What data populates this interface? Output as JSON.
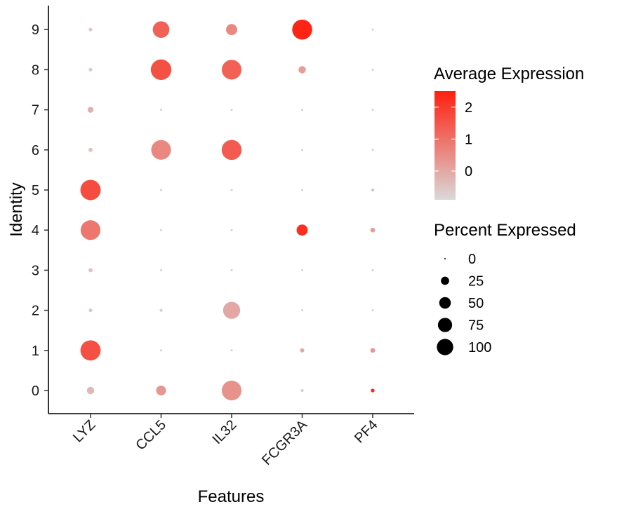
{
  "chart_data": {
    "type": "dotplot",
    "xlabel": "Features",
    "ylabel": "Identity",
    "features": [
      "LYZ",
      "CCL5",
      "IL32",
      "FCGR3A",
      "PF4"
    ],
    "identities": [
      "0",
      "1",
      "2",
      "3",
      "4",
      "5",
      "6",
      "7",
      "8",
      "9"
    ],
    "points": [
      {
        "identity": "0",
        "feature": "LYZ",
        "pct": 12,
        "avg": -0.3
      },
      {
        "identity": "0",
        "feature": "CCL5",
        "pct": 22,
        "avg": 0.3
      },
      {
        "identity": "0",
        "feature": "IL32",
        "pct": 88,
        "avg": 0.4
      },
      {
        "identity": "0",
        "feature": "FCGR3A",
        "pct": 2,
        "avg": -0.7
      },
      {
        "identity": "0",
        "feature": "PF4",
        "pct": 3,
        "avg": 2.4
      },
      {
        "identity": "1",
        "feature": "LYZ",
        "pct": 92,
        "avg": 1.6
      },
      {
        "identity": "1",
        "feature": "CCL5",
        "pct": 1,
        "avg": -0.7
      },
      {
        "identity": "1",
        "feature": "IL32",
        "pct": 1,
        "avg": -0.7
      },
      {
        "identity": "1",
        "feature": "FCGR3A",
        "pct": 4,
        "avg": 0.0
      },
      {
        "identity": "1",
        "feature": "PF4",
        "pct": 5,
        "avg": 0.3
      },
      {
        "identity": "2",
        "feature": "LYZ",
        "pct": 3,
        "avg": -0.6
      },
      {
        "identity": "2",
        "feature": "CCL5",
        "pct": 2,
        "avg": -0.7
      },
      {
        "identity": "2",
        "feature": "IL32",
        "pct": 66,
        "avg": 0.0
      },
      {
        "identity": "2",
        "feature": "FCGR3A",
        "pct": 1,
        "avg": -0.7
      },
      {
        "identity": "2",
        "feature": "PF4",
        "pct": 1,
        "avg": -0.7
      },
      {
        "identity": "3",
        "feature": "LYZ",
        "pct": 4,
        "avg": -0.5
      },
      {
        "identity": "3",
        "feature": "CCL5",
        "pct": 1,
        "avg": -0.7
      },
      {
        "identity": "3",
        "feature": "IL32",
        "pct": 1,
        "avg": -0.7
      },
      {
        "identity": "3",
        "feature": "FCGR3A",
        "pct": 1,
        "avg": -0.7
      },
      {
        "identity": "3",
        "feature": "PF4",
        "pct": 1,
        "avg": -0.7
      },
      {
        "identity": "4",
        "feature": "LYZ",
        "pct": 88,
        "avg": 0.9
      },
      {
        "identity": "4",
        "feature": "CCL5",
        "pct": 1,
        "avg": -0.7
      },
      {
        "identity": "4",
        "feature": "IL32",
        "pct": 1,
        "avg": -0.7
      },
      {
        "identity": "4",
        "feature": "FCGR3A",
        "pct": 28,
        "avg": 2.2
      },
      {
        "identity": "4",
        "feature": "PF4",
        "pct": 5,
        "avg": 0.2
      },
      {
        "identity": "5",
        "feature": "LYZ",
        "pct": 93,
        "avg": 1.7
      },
      {
        "identity": "5",
        "feature": "CCL5",
        "pct": 1,
        "avg": -0.7
      },
      {
        "identity": "5",
        "feature": "IL32",
        "pct": 1,
        "avg": -0.7
      },
      {
        "identity": "5",
        "feature": "FCGR3A",
        "pct": 1,
        "avg": -0.7
      },
      {
        "identity": "5",
        "feature": "PF4",
        "pct": 2,
        "avg": -0.4
      },
      {
        "identity": "6",
        "feature": "LYZ",
        "pct": 4,
        "avg": -0.5
      },
      {
        "identity": "6",
        "feature": "CCL5",
        "pct": 88,
        "avg": 0.6
      },
      {
        "identity": "6",
        "feature": "IL32",
        "pct": 90,
        "avg": 1.4
      },
      {
        "identity": "6",
        "feature": "FCGR3A",
        "pct": 1,
        "avg": -0.7
      },
      {
        "identity": "6",
        "feature": "PF4",
        "pct": 1,
        "avg": -0.7
      },
      {
        "identity": "7",
        "feature": "LYZ",
        "pct": 8,
        "avg": -0.2
      },
      {
        "identity": "7",
        "feature": "CCL5",
        "pct": 1,
        "avg": -0.7
      },
      {
        "identity": "7",
        "feature": "IL32",
        "pct": 1,
        "avg": -0.7
      },
      {
        "identity": "7",
        "feature": "FCGR3A",
        "pct": 1,
        "avg": -0.7
      },
      {
        "identity": "7",
        "feature": "PF4",
        "pct": 1,
        "avg": -0.7
      },
      {
        "identity": "8",
        "feature": "LYZ",
        "pct": 3,
        "avg": -0.6
      },
      {
        "identity": "8",
        "feature": "CCL5",
        "pct": 95,
        "avg": 1.6
      },
      {
        "identity": "8",
        "feature": "IL32",
        "pct": 88,
        "avg": 1.3
      },
      {
        "identity": "8",
        "feature": "FCGR3A",
        "pct": 12,
        "avg": 0.2
      },
      {
        "identity": "8",
        "feature": "PF4",
        "pct": 1,
        "avg": -0.7
      },
      {
        "identity": "9",
        "feature": "LYZ",
        "pct": 3,
        "avg": -0.6
      },
      {
        "identity": "9",
        "feature": "CCL5",
        "pct": 62,
        "avg": 1.3
      },
      {
        "identity": "9",
        "feature": "IL32",
        "pct": 28,
        "avg": 0.6
      },
      {
        "identity": "9",
        "feature": "FCGR3A",
        "pct": 90,
        "avg": 2.4
      },
      {
        "identity": "9",
        "feature": "PF4",
        "pct": 1,
        "avg": -0.7
      }
    ],
    "legends": {
      "color": {
        "title": "Average Expression",
        "ticks": [
          0,
          1,
          2
        ],
        "range": [
          -0.9,
          2.5
        ],
        "low_color": "#d9d9d9",
        "high_color": "#ff1f0f"
      },
      "size": {
        "title": "Percent Expressed",
        "breaks": [
          0,
          25,
          50,
          75,
          100
        ]
      }
    }
  }
}
